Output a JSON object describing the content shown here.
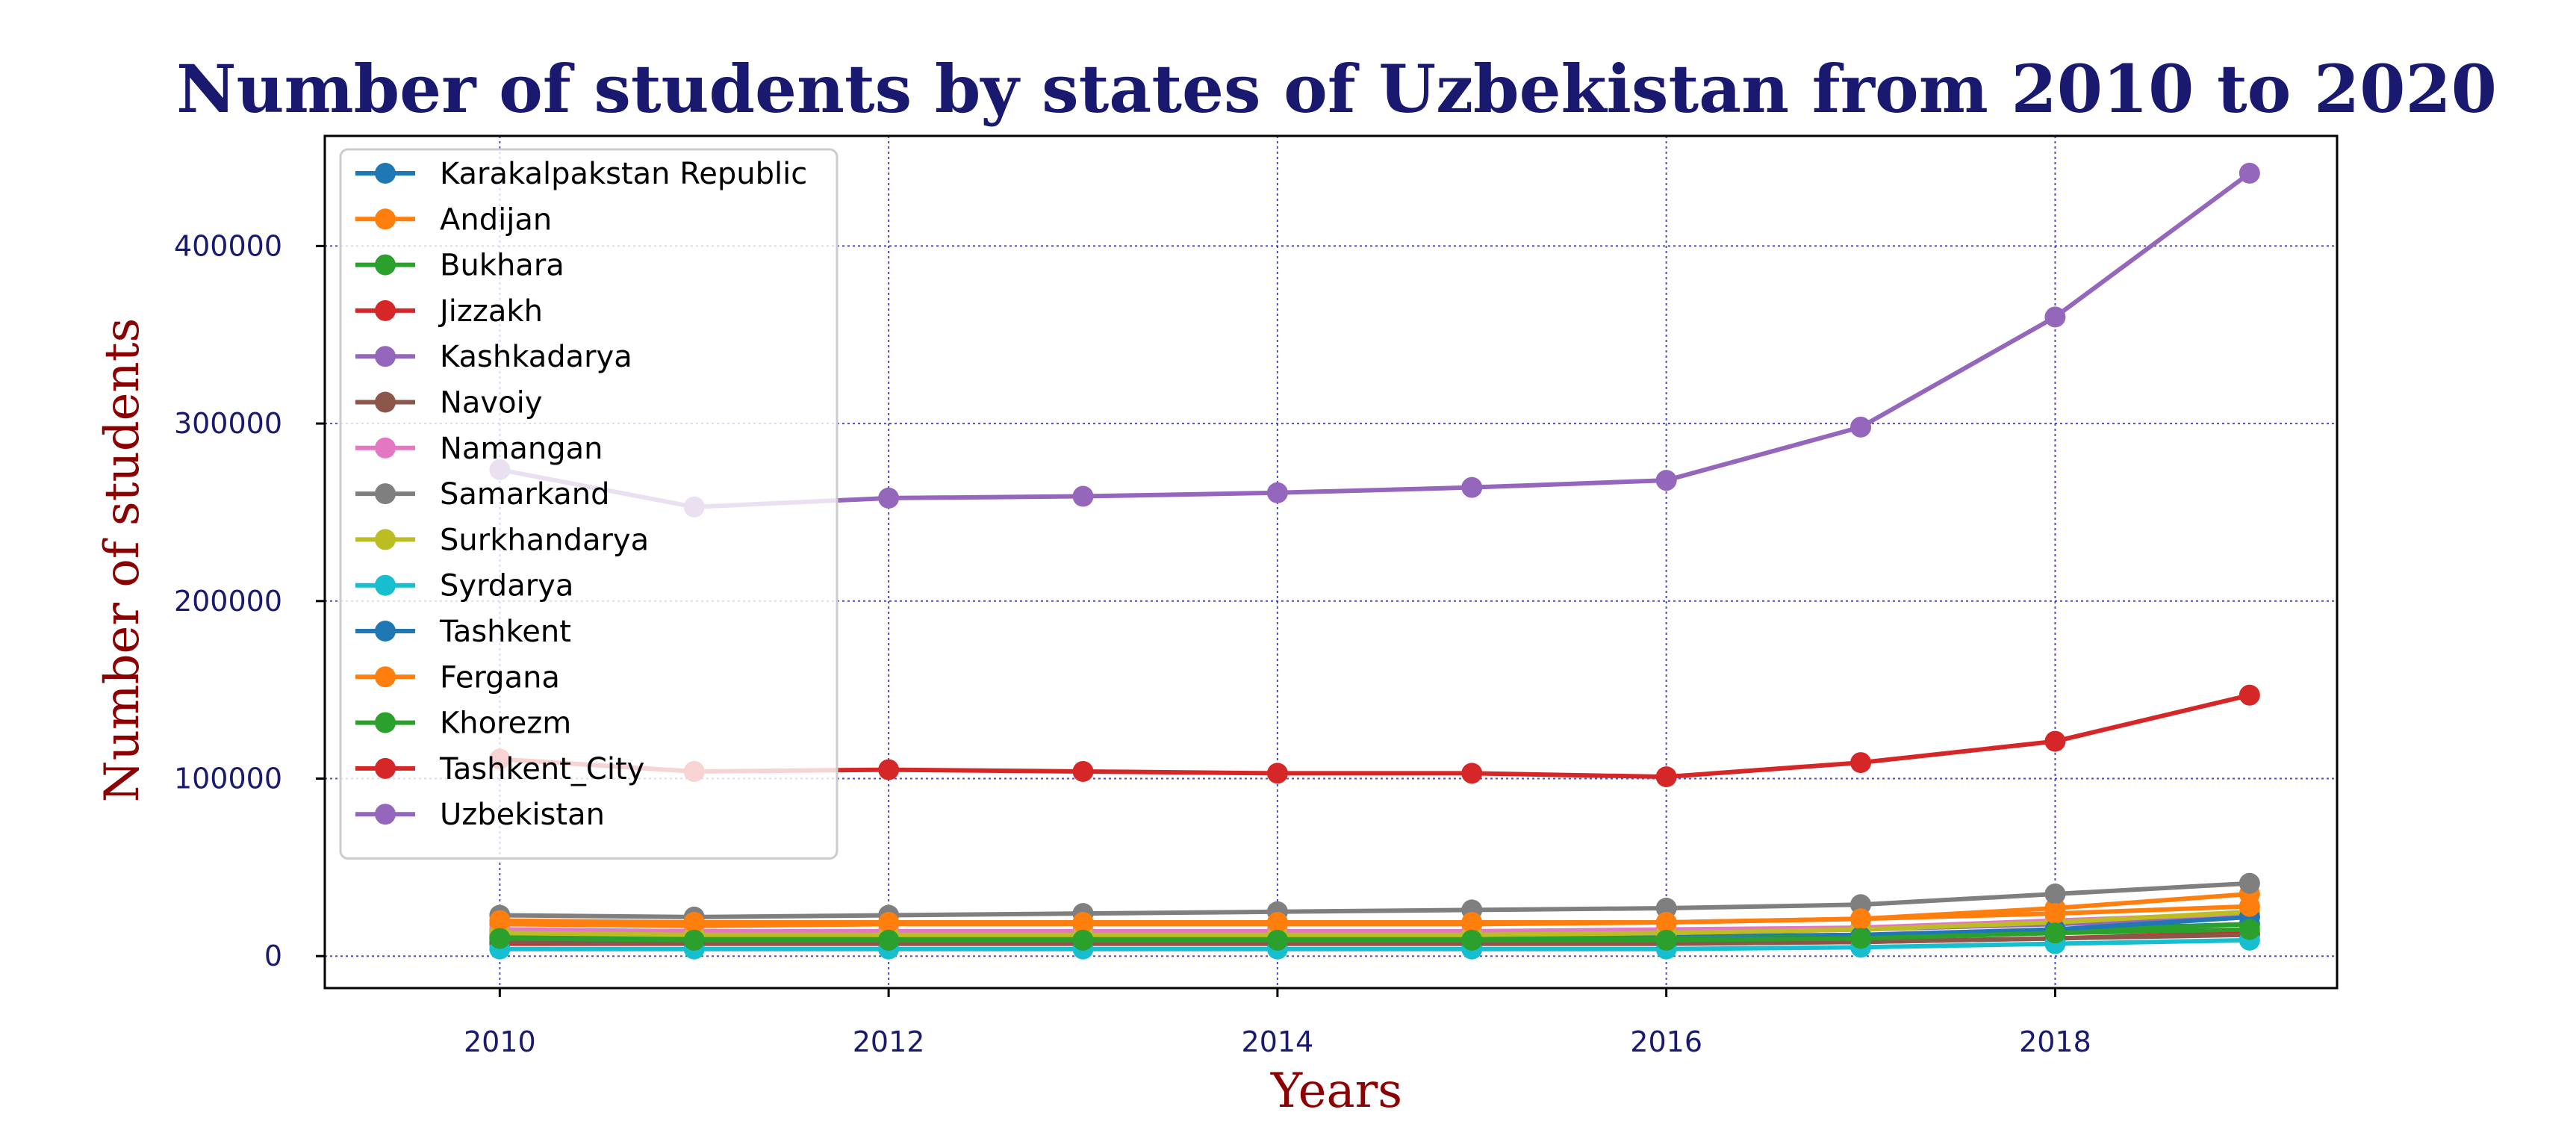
{
  "chart_data": {
    "type": "line",
    "title": "Number of students by states of Uzbekistan from 2010 to 2020",
    "xlabel": "Years",
    "ylabel": "Number of students",
    "xlim": [
      2009.1,
      2019.45
    ],
    "ylim": [
      -18000,
      462000
    ],
    "x_ticks": [
      2010,
      2012,
      2014,
      2016,
      2018
    ],
    "y_ticks": [
      0,
      100000,
      200000,
      300000,
      400000
    ],
    "grid": true,
    "legend_position": "upper-left",
    "x": [
      2010,
      2011,
      2012,
      2013,
      2014,
      2015,
      2016,
      2017,
      2018,
      2019
    ],
    "series": [
      {
        "name": "Karakalpakstan Republic",
        "color": "#1f77b4",
        "values": [
          12000,
          11000,
          11000,
          11000,
          11000,
          11000,
          11000,
          12000,
          15000,
          18000
        ]
      },
      {
        "name": "Andijan",
        "color": "#ff7f0e",
        "values": [
          18000,
          17000,
          18000,
          18000,
          18000,
          18000,
          19000,
          21000,
          27000,
          35000
        ]
      },
      {
        "name": "Bukhara",
        "color": "#2ca02c",
        "values": [
          11000,
          10000,
          10000,
          10000,
          10000,
          10000,
          10000,
          11000,
          14000,
          18000
        ]
      },
      {
        "name": "Jizzakh",
        "color": "#d62728",
        "values": [
          7000,
          7000,
          7000,
          7000,
          7000,
          7000,
          7000,
          8000,
          10000,
          13000
        ]
      },
      {
        "name": "Kashkadarya",
        "color": "#9467bd",
        "values": [
          14000,
          13000,
          13000,
          13000,
          13000,
          13000,
          13000,
          15000,
          18000,
          22000
        ]
      },
      {
        "name": "Navoiy",
        "color": "#8c564b",
        "values": [
          8000,
          7000,
          7000,
          7000,
          7000,
          7000,
          7000,
          8000,
          10000,
          12000
        ]
      },
      {
        "name": "Namangan",
        "color": "#e377c2",
        "values": [
          15000,
          14000,
          14000,
          14000,
          14000,
          14000,
          15000,
          16000,
          20000,
          24000
        ]
      },
      {
        "name": "Samarkand",
        "color": "#7f7f7f",
        "values": [
          23000,
          22000,
          23000,
          24000,
          25000,
          26000,
          27000,
          29000,
          35000,
          41000
        ]
      },
      {
        "name": "Surkhandarya",
        "color": "#bcbd22",
        "values": [
          13000,
          12000,
          12000,
          12000,
          12000,
          12000,
          13000,
          15000,
          19000,
          25000
        ]
      },
      {
        "name": "Syrdarya",
        "color": "#17becf",
        "values": [
          4000,
          4000,
          4000,
          4000,
          4000,
          4000,
          4000,
          5000,
          7000,
          9000
        ]
      },
      {
        "name": "Tashkent",
        "color": "#1f77b4",
        "values": [
          10000,
          9000,
          9000,
          9000,
          9000,
          9000,
          9000,
          11000,
          15000,
          22000
        ]
      },
      {
        "name": "Fergana",
        "color": "#ff7f0e",
        "values": [
          20000,
          19000,
          19000,
          19000,
          19000,
          19000,
          19000,
          21000,
          24000,
          28000
        ]
      },
      {
        "name": "Khorezm",
        "color": "#2ca02c",
        "values": [
          10000,
          9000,
          9000,
          9000,
          9000,
          9000,
          9000,
          10000,
          13000,
          15000
        ]
      },
      {
        "name": "Tashkent_City",
        "color": "#d62728",
        "values": [
          111000,
          104000,
          105000,
          104000,
          103000,
          103000,
          101000,
          109000,
          121000,
          147000
        ]
      },
      {
        "name": "Uzbekistan",
        "color": "#9467bd",
        "values": [
          274000,
          253000,
          258000,
          259000,
          261000,
          264000,
          268000,
          298000,
          360000,
          441000
        ]
      }
    ]
  }
}
